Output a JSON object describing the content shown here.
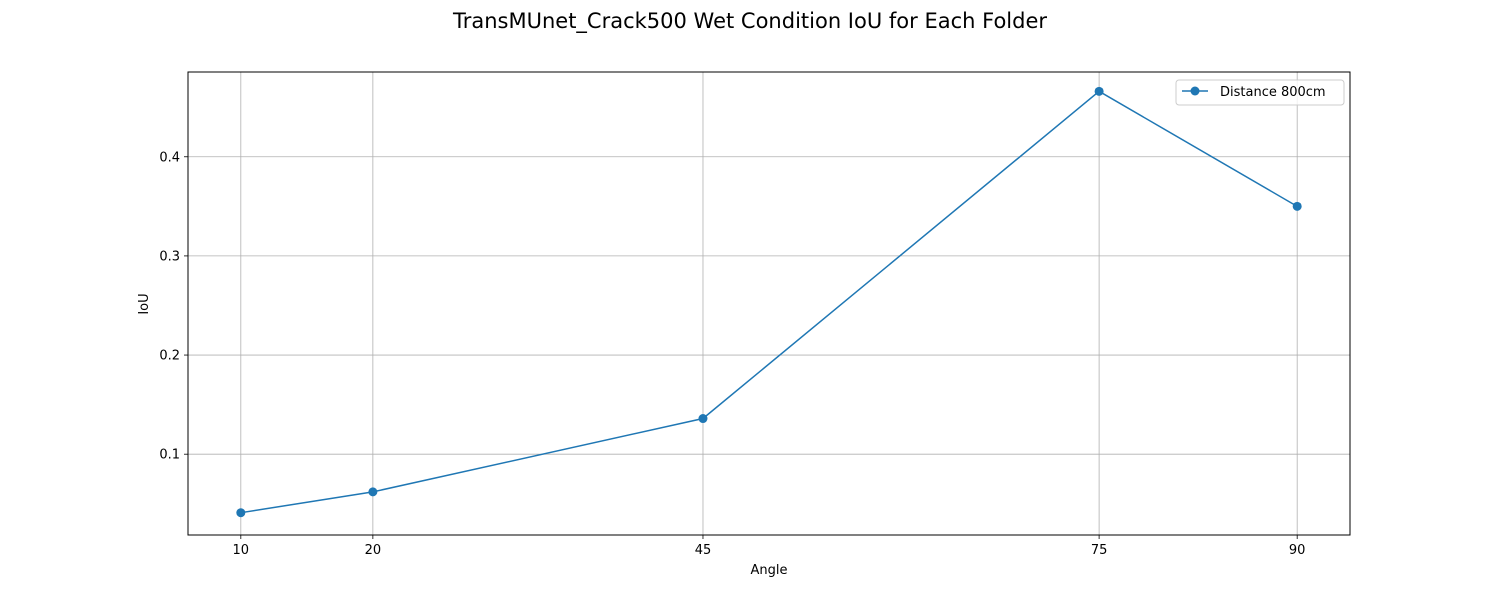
{
  "chart_data": {
    "type": "line",
    "title": "TransMUnet_Crack500 Wet Condition IoU for Each Folder",
    "xlabel": "Angle",
    "ylabel": "IoU",
    "x": [
      10,
      20,
      45,
      75,
      90
    ],
    "x_ticks": [
      "10",
      "20",
      "45",
      "75",
      "90"
    ],
    "y_ticks": [
      "0.1",
      "0.2",
      "0.3",
      "0.4"
    ],
    "y_tick_values": [
      0.1,
      0.2,
      0.3,
      0.4
    ],
    "xlim": [
      6,
      94
    ],
    "ylim": [
      0.0185,
      0.4855
    ],
    "grid": true,
    "legend_position": "top-right",
    "series": [
      {
        "name": "Distance 800cm",
        "color": "#1f77b4",
        "marker": "circle",
        "values": [
          0.041,
          0.062,
          0.136,
          0.466,
          0.35
        ]
      }
    ]
  }
}
